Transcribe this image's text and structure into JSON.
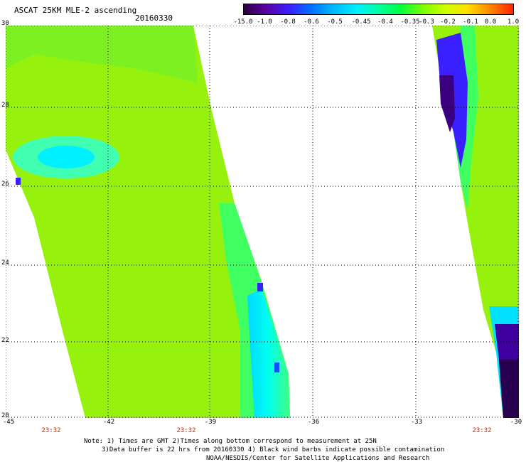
{
  "header": {
    "title": "ASCAT 25KM MLE-2 ascending",
    "date": "20160330"
  },
  "colorbar": {
    "labels": [
      "-15.0",
      "-1.0",
      "-0.8",
      "-0.6",
      "-0.5",
      "-0.45",
      "-0.4",
      "-0.35",
      "-0.3",
      "-0.2",
      "-0.1",
      "0.0",
      "1.0"
    ],
    "colors": [
      "#2a0040",
      "#5a00a0",
      "#3a20ff",
      "#0070ff",
      "#00b8ff",
      "#00f0ff",
      "#00ffa0",
      "#00ff40",
      "#80ff00",
      "#d0ff00",
      "#ffe000",
      "#ff8000",
      "#ff2000"
    ]
  },
  "map": {
    "lon_range": [
      -45,
      -30
    ],
    "lat_range": [
      20,
      30
    ],
    "x_ticks": [
      "-45",
      "-42",
      "-39",
      "-36",
      "-33",
      "-30"
    ],
    "y_ticks": [
      "30",
      "28",
      "26",
      "24",
      "22",
      "20"
    ],
    "times": [
      "23:32",
      "23:32",
      "23:32"
    ]
  },
  "notes": {
    "line1": "Note: 1) Times are GMT 2)Times along bottom correspond to measurement at 25N",
    "line2": "3)Data buffer is 22 hrs from 20160330 4) Black wind barbs indicate possible contamination",
    "line3": "NOAA/NESDIS/Center for Satellite Applications and Research"
  }
}
